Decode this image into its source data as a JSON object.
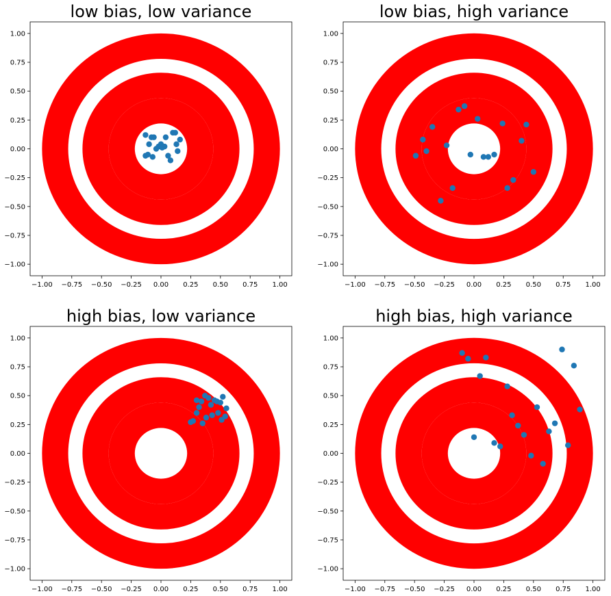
{
  "chart_data": [
    {
      "type": "scatter",
      "title": "low bias,  low variance",
      "xlabel": "",
      "ylabel": "",
      "xlim": [
        -1.1,
        1.1
      ],
      "ylim": [
        -1.1,
        1.1
      ],
      "xticks": [
        "−1.00",
        "−0.75",
        "−0.50",
        "−0.25",
        "0.00",
        "0.25",
        "0.50",
        "0.75",
        "1.00"
      ],
      "yticks": [
        "−1.00",
        "−0.75",
        "−0.50",
        "−0.25",
        "0.00",
        "0.25",
        "0.50",
        "0.75",
        "1.00"
      ],
      "grid": false,
      "target_rings": [
        [
          0.78,
          1.0
        ],
        [
          0.44,
          0.66
        ],
        [
          0.22,
          0.44
        ]
      ],
      "target_color": "#ff0000",
      "point_color": "#1f77b4",
      "points": [
        [
          -0.13,
          0.12
        ],
        [
          -0.08,
          0.1
        ],
        [
          -0.06,
          0.1
        ],
        [
          -0.1,
          0.04
        ],
        [
          -0.13,
          -0.06
        ],
        [
          -0.11,
          -0.05
        ],
        [
          -0.07,
          -0.07
        ],
        [
          -0.04,
          0.0
        ],
        [
          -0.02,
          0.02
        ],
        [
          0.0,
          0.04
        ],
        [
          0.01,
          0.01
        ],
        [
          0.03,
          0.02
        ],
        [
          0.04,
          0.1
        ],
        [
          0.06,
          -0.06
        ],
        [
          0.08,
          -0.1
        ],
        [
          0.1,
          0.14
        ],
        [
          0.12,
          0.14
        ],
        [
          0.13,
          0.04
        ],
        [
          0.14,
          -0.02
        ],
        [
          0.16,
          0.08
        ]
      ]
    },
    {
      "type": "scatter",
      "title": "low bias,  high variance",
      "xlabel": "",
      "ylabel": "",
      "xlim": [
        -1.1,
        1.1
      ],
      "ylim": [
        -1.1,
        1.1
      ],
      "xticks": [
        "−1.00",
        "−0.75",
        "−0.50",
        "−0.25",
        "0.00",
        "0.25",
        "0.50",
        "0.75",
        "1.00"
      ],
      "yticks": [
        "−1.00",
        "−0.75",
        "−0.50",
        "−0.25",
        "0.00",
        "0.25",
        "0.50",
        "0.75",
        "1.00"
      ],
      "grid": false,
      "target_rings": [
        [
          0.78,
          1.0
        ],
        [
          0.44,
          0.66
        ],
        [
          0.22,
          0.44
        ]
      ],
      "target_color": "#ff0000",
      "point_color": "#1f77b4",
      "points": [
        [
          -0.49,
          -0.06
        ],
        [
          -0.43,
          0.08
        ],
        [
          -0.4,
          -0.02
        ],
        [
          -0.35,
          0.19
        ],
        [
          -0.28,
          -0.45
        ],
        [
          -0.23,
          0.03
        ],
        [
          -0.18,
          -0.34
        ],
        [
          -0.13,
          0.34
        ],
        [
          -0.08,
          0.37
        ],
        [
          -0.03,
          -0.05
        ],
        [
          0.03,
          0.26
        ],
        [
          0.08,
          -0.07
        ],
        [
          0.12,
          -0.07
        ],
        [
          0.17,
          -0.05
        ],
        [
          0.24,
          0.22
        ],
        [
          0.28,
          -0.34
        ],
        [
          0.33,
          -0.27
        ],
        [
          0.4,
          0.07
        ],
        [
          0.44,
          0.21
        ],
        [
          0.5,
          -0.2
        ]
      ]
    },
    {
      "type": "scatter",
      "title": "high bias,  low variance",
      "xlabel": "",
      "ylabel": "",
      "xlim": [
        -1.1,
        1.1
      ],
      "ylim": [
        -1.1,
        1.1
      ],
      "xticks": [
        "−1.00",
        "−0.75",
        "−0.50",
        "−0.25",
        "0.00",
        "0.25",
        "0.50",
        "0.75",
        "1.00"
      ],
      "yticks": [
        "−1.00",
        "−0.75",
        "−0.50",
        "−0.25",
        "0.00",
        "0.25",
        "0.50",
        "0.75",
        "1.00"
      ],
      "grid": false,
      "target_rings": [
        [
          0.78,
          1.0
        ],
        [
          0.44,
          0.66
        ],
        [
          0.22,
          0.44
        ]
      ],
      "target_color": "#ff0000",
      "point_color": "#1f77b4",
      "points": [
        [
          0.25,
          0.27
        ],
        [
          0.27,
          0.28
        ],
        [
          0.3,
          0.35
        ],
        [
          0.3,
          0.46
        ],
        [
          0.32,
          0.4
        ],
        [
          0.34,
          0.45
        ],
        [
          0.35,
          0.26
        ],
        [
          0.37,
          0.5
        ],
        [
          0.38,
          0.31
        ],
        [
          0.4,
          0.48
        ],
        [
          0.42,
          0.42
        ],
        [
          0.43,
          0.33
        ],
        [
          0.45,
          0.46
        ],
        [
          0.47,
          0.45
        ],
        [
          0.48,
          0.35
        ],
        [
          0.5,
          0.44
        ],
        [
          0.51,
          0.29
        ],
        [
          0.52,
          0.49
        ],
        [
          0.54,
          0.32
        ],
        [
          0.55,
          0.39
        ]
      ]
    },
    {
      "type": "scatter",
      "title": "high bias,  high variance",
      "xlabel": "",
      "ylabel": "",
      "xlim": [
        -1.1,
        1.1
      ],
      "ylim": [
        -1.1,
        1.1
      ],
      "xticks": [
        "−1.00",
        "−0.75",
        "−0.50",
        "−0.25",
        "0.00",
        "0.25",
        "0.50",
        "0.75",
        "1.00"
      ],
      "yticks": [
        "−1.00",
        "−0.75",
        "−0.50",
        "−0.25",
        "0.00",
        "0.25",
        "0.50",
        "0.75",
        "1.00"
      ],
      "grid": false,
      "target_rings": [
        [
          0.78,
          1.0
        ],
        [
          0.44,
          0.66
        ],
        [
          0.22,
          0.44
        ]
      ],
      "target_color": "#ff0000",
      "point_color": "#1f77b4",
      "points": [
        [
          -0.1,
          0.87
        ],
        [
          -0.05,
          0.82
        ],
        [
          0.0,
          0.14
        ],
        [
          0.05,
          0.67
        ],
        [
          0.1,
          0.83
        ],
        [
          0.17,
          0.09
        ],
        [
          0.22,
          0.06
        ],
        [
          0.28,
          0.58
        ],
        [
          0.32,
          0.33
        ],
        [
          0.37,
          0.24
        ],
        [
          0.42,
          0.16
        ],
        [
          0.48,
          -0.02
        ],
        [
          0.53,
          0.4
        ],
        [
          0.58,
          -0.09
        ],
        [
          0.63,
          0.19
        ],
        [
          0.68,
          0.26
        ],
        [
          0.74,
          0.9
        ],
        [
          0.79,
          0.07
        ],
        [
          0.84,
          0.76
        ],
        [
          0.89,
          0.38
        ]
      ]
    }
  ]
}
